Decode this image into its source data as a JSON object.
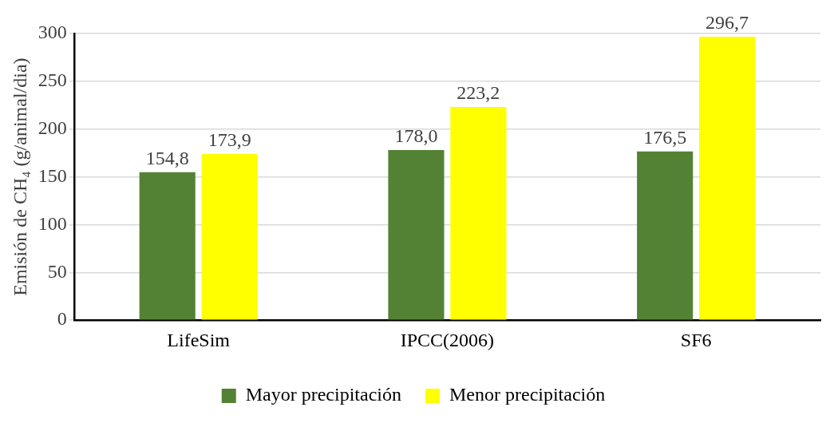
{
  "chart_data": {
    "type": "bar",
    "ylabel": "Emisión de CH₄ (g/animal/dia)",
    "categories": [
      "LifeSim",
      "IPCC(2006)",
      "SF6"
    ],
    "series": [
      {
        "name": "Mayor precipitación",
        "color": "#548235",
        "values": [
          154.8,
          178.0,
          176.5
        ],
        "value_labels": [
          "154,8",
          "178,0",
          "176,5"
        ]
      },
      {
        "name": "Menor precipitación",
        "color": "#ffff00",
        "values": [
          173.9,
          223.2,
          296.7
        ],
        "value_labels": [
          "173,9",
          "223,2",
          "296,7"
        ]
      }
    ],
    "ylim": [
      0,
      300
    ],
    "yticks": [
      0,
      50,
      100,
      150,
      200,
      250,
      300
    ],
    "grid": "y",
    "legend": "bottom"
  }
}
